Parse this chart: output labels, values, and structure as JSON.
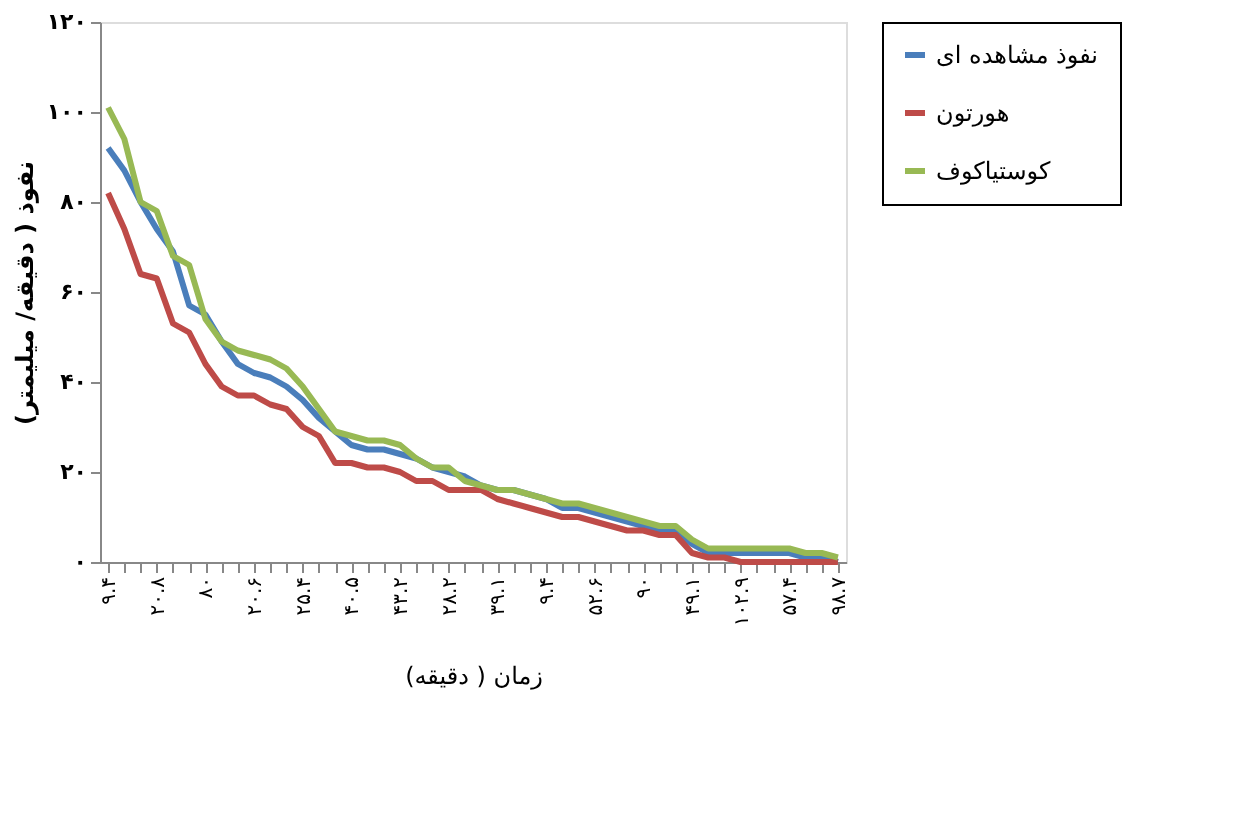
{
  "chart_data": {
    "type": "line",
    "xlabel": "زمان ( دقیقه)",
    "ylabel": "نفوذ ( دقیقه/ میلیمتر)",
    "categories": [
      "۹.۴",
      null,
      null,
      "۲۰.۸",
      null,
      null,
      "۸۰",
      null,
      null,
      "۲۰.۶",
      null,
      null,
      "۲۵.۴",
      null,
      null,
      "۴۰.۵",
      null,
      null,
      "۴۳.۲",
      null,
      null,
      "۲۸.۲",
      null,
      null,
      "۳۹.۱",
      null,
      null,
      "۹.۴",
      null,
      null,
      "۵۲.۶",
      null,
      null,
      "۹۰",
      null,
      null,
      "۴۹.۱",
      null,
      null,
      "۱۰۲.۹",
      null,
      null,
      "۵۷.۴",
      null,
      null,
      "۹۸.۷"
    ],
    "series": [
      {
        "name": "نفوذ مشاهده ای",
        "color": "#4a7ebb",
        "values": [
          92,
          87,
          80,
          74,
          69,
          57,
          55,
          49,
          44,
          42,
          41,
          39,
          36,
          32,
          29,
          26,
          25,
          25,
          24,
          23,
          21,
          20,
          19,
          17,
          16,
          16,
          15,
          14,
          12,
          12,
          11,
          10,
          9,
          8,
          7,
          7,
          4,
          2,
          2,
          2,
          2,
          2,
          2,
          1,
          1,
          0
        ]
      },
      {
        "name": "هورتون",
        "color": "#be4b48",
        "values": [
          82,
          74,
          64,
          63,
          53,
          51,
          44,
          39,
          37,
          37,
          35,
          34,
          30,
          28,
          22,
          22,
          21,
          21,
          20,
          18,
          18,
          16,
          16,
          16,
          14,
          13,
          12,
          11,
          10,
          10,
          9,
          8,
          7,
          7,
          6,
          6,
          2,
          1,
          1,
          0,
          0,
          0,
          0,
          0,
          0,
          0
        ]
      },
      {
        "name": "کوستیاکوف",
        "color": "#98b954",
        "values": [
          101,
          94,
          80,
          78,
          68,
          66,
          54,
          49,
          47,
          46,
          45,
          43,
          39,
          34,
          29,
          28,
          27,
          27,
          26,
          23,
          21,
          21,
          18,
          17,
          16,
          16,
          15,
          14,
          13,
          13,
          12,
          11,
          10,
          9,
          8,
          8,
          5,
          3,
          3,
          3,
          3,
          3,
          3,
          2,
          2,
          1
        ]
      }
    ],
    "ylim": [
      0,
      120
    ],
    "yticks": [
      {
        "value": 0,
        "label": "۰"
      },
      {
        "value": 20,
        "label": "۲۰"
      },
      {
        "value": 40,
        "label": "۴۰"
      },
      {
        "value": 60,
        "label": "۶۰"
      },
      {
        "value": 80,
        "label": "۸۰"
      },
      {
        "value": 100,
        "label": "۱۰۰"
      },
      {
        "value": 120,
        "label": "۱۲۰"
      }
    ],
    "grid": false,
    "legend": "right",
    "line_style": "solid",
    "marker": "none"
  }
}
